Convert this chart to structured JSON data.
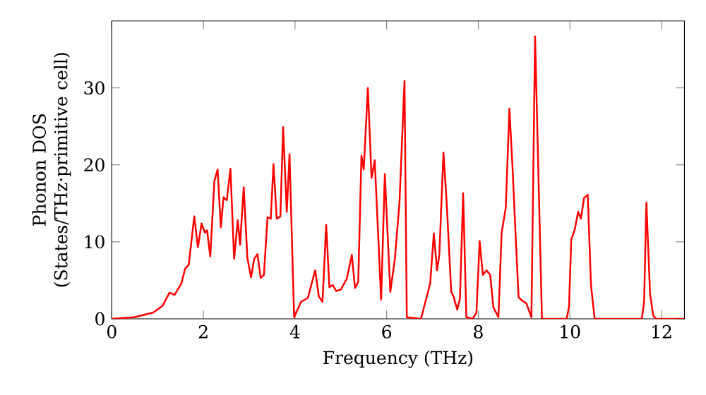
{
  "chart_data": {
    "type": "line",
    "xlabel": "Frequency (THz)",
    "ylabel": "Phonon DOS (States/THz·primitive cell)",
    "xlim": [
      0,
      12.5
    ],
    "ylim": [
      0,
      38.7
    ],
    "xticks": [
      0,
      2,
      4,
      6,
      8,
      10,
      12
    ],
    "yticks": [
      0,
      10,
      20,
      30
    ],
    "marker": "none",
    "line_style": "solid",
    "series": [
      {
        "color": "#ff0000",
        "x": [
          0,
          0.49,
          0.9,
          1.11,
          1.26,
          1.37,
          1.52,
          1.6,
          1.68,
          1.8,
          1.88,
          1.96,
          2.03,
          2.08,
          2.15,
          2.24,
          2.31,
          2.38,
          2.44,
          2.51,
          2.59,
          2.67,
          2.75,
          2.8,
          2.88,
          2.96,
          3.04,
          3.11,
          3.18,
          3.25,
          3.32,
          3.4,
          3.47,
          3.53,
          3.6,
          3.68,
          3.74,
          3.82,
          3.88,
          3.98,
          4.13,
          4.28,
          4.44,
          4.52,
          4.6,
          4.68,
          4.75,
          4.82,
          4.9,
          5.0,
          5.13,
          5.24,
          5.31,
          5.38,
          5.45,
          5.5,
          5.59,
          5.67,
          5.74,
          5.88,
          5.96,
          6.08,
          6.18,
          6.28,
          6.39,
          6.44,
          6.75,
          6.95,
          7.03,
          7.1,
          7.15,
          7.24,
          7.31,
          7.41,
          7.46,
          7.54,
          7.6,
          7.67,
          7.74,
          7.88,
          7.96,
          8.03,
          8.1,
          8.18,
          8.26,
          8.33,
          8.44,
          8.51,
          8.6,
          8.68,
          8.75,
          8.82,
          8.88,
          8.95,
          9.05,
          9.16,
          9.24,
          9.39,
          9.93,
          9.98,
          10.03,
          10.11,
          10.18,
          10.24,
          10.31,
          10.39,
          10.46,
          10.54,
          11.57,
          11.62,
          11.67,
          11.75,
          11.82,
          11.88,
          12.49
        ],
        "values": [
          0,
          0.2,
          0.8,
          1.7,
          3.4,
          3.1,
          4.6,
          6.5,
          7.0,
          13.3,
          9.3,
          12.4,
          11.2,
          11.5,
          8.1,
          17.9,
          19.4,
          11.9,
          15.8,
          15.4,
          19.5,
          7.8,
          12.8,
          9.6,
          17.1,
          7.9,
          5.4,
          7.8,
          8.4,
          5.3,
          5.7,
          13.2,
          13.0,
          20.1,
          13.0,
          13.3,
          24.9,
          13.9,
          21.4,
          0.2,
          2.2,
          2.7,
          6.3,
          2.9,
          2.2,
          12.2,
          4.1,
          4.4,
          3.6,
          3.8,
          5.2,
          8.3,
          4.0,
          4.8,
          21.2,
          19.4,
          30.0,
          18.3,
          20.6,
          2.5,
          18.8,
          3.5,
          7.8,
          15.1,
          30.9,
          0.2,
          0,
          4.6,
          11.1,
          6.3,
          8.3,
          21.6,
          15.1,
          3.5,
          2.9,
          1.2,
          2.6,
          16.3,
          0.2,
          0,
          0.8,
          10.1,
          5.7,
          6.3,
          5.7,
          1.5,
          0.2,
          11.2,
          14.4,
          27.3,
          19.4,
          10.2,
          2.8,
          2.4,
          2.0,
          0.2,
          36.7,
          0,
          0,
          1.5,
          10.3,
          11.7,
          13.9,
          13.0,
          15.7,
          16.1,
          4.4,
          0,
          0,
          2.2,
          15.1,
          3.2,
          0.4,
          0,
          0
        ]
      }
    ]
  }
}
